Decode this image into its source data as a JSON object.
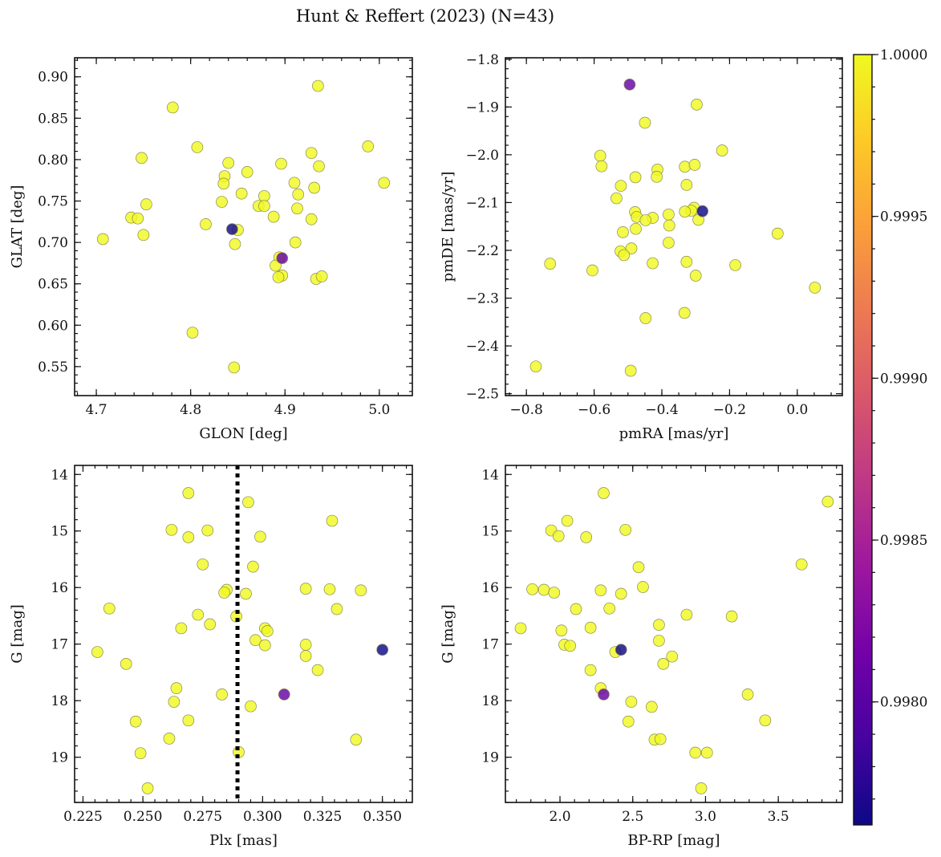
{
  "figure_title": "Hunt & Reffert (2023) (N=43)",
  "chart_data": [
    {
      "id": "sky",
      "type": "scatter",
      "title": "",
      "xlabel": "GLON [deg]",
      "ylabel": "GLAT [deg]",
      "xlim": [
        4.677,
        5.035
      ],
      "ylim": [
        0.515,
        0.923
      ],
      "invert_y": false,
      "xticks": [
        4.7,
        4.8,
        4.9,
        5.0
      ],
      "xticklabels": [
        "4.7",
        "4.8",
        "4.9",
        "5.0"
      ],
      "yticks": [
        0.55,
        0.6,
        0.65,
        0.7,
        0.75,
        0.8,
        0.85,
        0.9
      ],
      "yticklabels": [
        "0.55",
        "0.60",
        "0.65",
        "0.70",
        "0.75",
        "0.80",
        "0.85",
        "0.90"
      ],
      "xminor": 0.02,
      "yminor": 0.01,
      "points": [
        {
          "x": 4.781,
          "y": 0.863
        },
        {
          "x": 4.935,
          "y": 0.889
        },
        {
          "x": 4.988,
          "y": 0.816
        },
        {
          "x": 4.748,
          "y": 0.802
        },
        {
          "x": 4.807,
          "y": 0.815
        },
        {
          "x": 4.928,
          "y": 0.808
        },
        {
          "x": 4.84,
          "y": 0.796
        },
        {
          "x": 4.896,
          "y": 0.795
        },
        {
          "x": 4.936,
          "y": 0.792
        },
        {
          "x": 4.836,
          "y": 0.78
        },
        {
          "x": 4.86,
          "y": 0.785
        },
        {
          "x": 4.91,
          "y": 0.772
        },
        {
          "x": 5.005,
          "y": 0.772
        },
        {
          "x": 4.835,
          "y": 0.771
        },
        {
          "x": 4.854,
          "y": 0.759
        },
        {
          "x": 4.878,
          "y": 0.756
        },
        {
          "x": 4.914,
          "y": 0.758
        },
        {
          "x": 4.931,
          "y": 0.766
        },
        {
          "x": 4.833,
          "y": 0.749
        },
        {
          "x": 4.753,
          "y": 0.746
        },
        {
          "x": 4.872,
          "y": 0.744
        },
        {
          "x": 4.878,
          "y": 0.744
        },
        {
          "x": 4.913,
          "y": 0.741
        },
        {
          "x": 4.737,
          "y": 0.73
        },
        {
          "x": 4.744,
          "y": 0.729
        },
        {
          "x": 4.888,
          "y": 0.731
        },
        {
          "x": 4.928,
          "y": 0.728
        },
        {
          "x": 4.816,
          "y": 0.722
        },
        {
          "x": 4.75,
          "y": 0.709
        },
        {
          "x": 4.707,
          "y": 0.704
        },
        {
          "x": 4.85,
          "y": 0.715
        },
        {
          "x": 4.847,
          "y": 0.698
        },
        {
          "x": 4.911,
          "y": 0.7
        },
        {
          "x": 4.894,
          "y": 0.682
        },
        {
          "x": 4.89,
          "y": 0.672
        },
        {
          "x": 4.897,
          "y": 0.66
        },
        {
          "x": 4.893,
          "y": 0.658
        },
        {
          "x": 4.933,
          "y": 0.656
        },
        {
          "x": 4.939,
          "y": 0.659
        },
        {
          "x": 4.802,
          "y": 0.591
        },
        {
          "x": 4.846,
          "y": 0.549
        },
        {
          "x": 4.844,
          "y": 0.716,
          "c": 0.99762
        },
        {
          "x": 4.897,
          "y": 0.681,
          "c": 0.99808
        }
      ]
    },
    {
      "id": "pm",
      "type": "scatter",
      "title": "",
      "xlabel": "pmRA [mas/yr]",
      "ylabel": "pmDE [mas/yr]",
      "xlim": [
        -0.862,
        0.133
      ],
      "ylim": [
        -2.504,
        -1.797
      ],
      "invert_y": false,
      "xticks": [
        -0.8,
        -0.6,
        -0.4,
        -0.2,
        0.0
      ],
      "xticklabels": [
        "−0.8",
        "−0.6",
        "−0.4",
        "−0.2",
        "0.0"
      ],
      "yticks": [
        -2.5,
        -2.4,
        -2.3,
        -2.2,
        -2.1,
        -2.0,
        -1.9,
        -1.8
      ],
      "yticklabels": [
        "−2.5",
        "−2.4",
        "−2.3",
        "−2.2",
        "−2.1",
        "−2.0",
        "−1.9",
        "−1.8"
      ],
      "xminor": 0.05,
      "yminor": 0.02,
      "points": [
        {
          "x": -0.297,
          "y": -1.895
        },
        {
          "x": -0.45,
          "y": -1.933
        },
        {
          "x": -0.222,
          "y": -1.991
        },
        {
          "x": -0.582,
          "y": -2.002
        },
        {
          "x": -0.578,
          "y": -2.024
        },
        {
          "x": -0.332,
          "y": -2.025
        },
        {
          "x": -0.303,
          "y": -2.021
        },
        {
          "x": -0.413,
          "y": -2.031
        },
        {
          "x": -0.478,
          "y": -2.047
        },
        {
          "x": -0.415,
          "y": -2.046
        },
        {
          "x": -0.521,
          "y": -2.065
        },
        {
          "x": -0.327,
          "y": -2.063
        },
        {
          "x": -0.534,
          "y": -2.091
        },
        {
          "x": -0.479,
          "y": -2.12
        },
        {
          "x": -0.474,
          "y": -2.13
        },
        {
          "x": -0.305,
          "y": -2.111
        },
        {
          "x": -0.313,
          "y": -2.117
        },
        {
          "x": -0.332,
          "y": -2.119
        },
        {
          "x": -0.427,
          "y": -2.132
        },
        {
          "x": -0.448,
          "y": -2.137
        },
        {
          "x": -0.38,
          "y": -2.125
        },
        {
          "x": -0.292,
          "y": -2.136
        },
        {
          "x": -0.378,
          "y": -2.148
        },
        {
          "x": -0.477,
          "y": -2.155
        },
        {
          "x": -0.515,
          "y": -2.162
        },
        {
          "x": -0.058,
          "y": -2.165
        },
        {
          "x": -0.38,
          "y": -2.184
        },
        {
          "x": -0.49,
          "y": -2.196
        },
        {
          "x": -0.522,
          "y": -2.202
        },
        {
          "x": -0.512,
          "y": -2.21
        },
        {
          "x": -0.327,
          "y": -2.224
        },
        {
          "x": -0.427,
          "y": -2.227
        },
        {
          "x": -0.73,
          "y": -2.228
        },
        {
          "x": -0.183,
          "y": -2.231
        },
        {
          "x": -0.605,
          "y": -2.242
        },
        {
          "x": -0.3,
          "y": -2.253
        },
        {
          "x": 0.052,
          "y": -2.278
        },
        {
          "x": -0.333,
          "y": -2.331
        },
        {
          "x": -0.448,
          "y": -2.342
        },
        {
          "x": -0.772,
          "y": -2.443
        },
        {
          "x": -0.492,
          "y": -2.452
        },
        {
          "x": -0.28,
          "y": -2.118,
          "c": 0.99762
        },
        {
          "x": -0.495,
          "y": -1.853,
          "c": 0.99808
        }
      ]
    },
    {
      "id": "plx",
      "type": "scatter",
      "title": "",
      "xlabel": "Plx [mas]",
      "ylabel": "G [mag]",
      "xlim": [
        0.2215,
        0.3625
      ],
      "ylim": [
        13.84,
        19.8
      ],
      "invert_y": true,
      "xticks": [
        0.225,
        0.25,
        0.275,
        0.3,
        0.325,
        0.35
      ],
      "xticklabels": [
        "0.225",
        "0.250",
        "0.275",
        "0.300",
        "0.325",
        "0.350"
      ],
      "yticks": [
        14,
        15,
        16,
        17,
        18,
        19
      ],
      "yticklabels": [
        "14",
        "15",
        "16",
        "17",
        "18",
        "19"
      ],
      "xminor": 0.005,
      "yminor": 0.2,
      "vline": {
        "x": 0.2895,
        "style": "dotted"
      },
      "points": [
        {
          "x": 0.269,
          "y": 14.33
        },
        {
          "x": 0.294,
          "y": 14.49
        },
        {
          "x": 0.329,
          "y": 14.82
        },
        {
          "x": 0.262,
          "y": 14.98
        },
        {
          "x": 0.277,
          "y": 14.99
        },
        {
          "x": 0.269,
          "y": 15.11
        },
        {
          "x": 0.299,
          "y": 15.1
        },
        {
          "x": 0.275,
          "y": 15.59
        },
        {
          "x": 0.296,
          "y": 15.63
        },
        {
          "x": 0.285,
          "y": 16.04
        },
        {
          "x": 0.284,
          "y": 16.09
        },
        {
          "x": 0.293,
          "y": 16.11
        },
        {
          "x": 0.318,
          "y": 16.02
        },
        {
          "x": 0.328,
          "y": 16.03
        },
        {
          "x": 0.341,
          "y": 16.05
        },
        {
          "x": 0.236,
          "y": 16.37
        },
        {
          "x": 0.331,
          "y": 16.38
        },
        {
          "x": 0.273,
          "y": 16.48
        },
        {
          "x": 0.289,
          "y": 16.51
        },
        {
          "x": 0.278,
          "y": 16.65
        },
        {
          "x": 0.266,
          "y": 16.72
        },
        {
          "x": 0.301,
          "y": 16.72
        },
        {
          "x": 0.302,
          "y": 16.77
        },
        {
          "x": 0.297,
          "y": 16.93
        },
        {
          "x": 0.301,
          "y": 17.02
        },
        {
          "x": 0.318,
          "y": 17.01
        },
        {
          "x": 0.231,
          "y": 17.14
        },
        {
          "x": 0.318,
          "y": 17.21
        },
        {
          "x": 0.243,
          "y": 17.35
        },
        {
          "x": 0.323,
          "y": 17.46
        },
        {
          "x": 0.264,
          "y": 17.78
        },
        {
          "x": 0.283,
          "y": 17.89
        },
        {
          "x": 0.263,
          "y": 18.02
        },
        {
          "x": 0.295,
          "y": 18.1
        },
        {
          "x": 0.247,
          "y": 18.37
        },
        {
          "x": 0.269,
          "y": 18.35
        },
        {
          "x": 0.261,
          "y": 18.67
        },
        {
          "x": 0.339,
          "y": 18.69
        },
        {
          "x": 0.249,
          "y": 18.93
        },
        {
          "x": 0.29,
          "y": 18.91
        },
        {
          "x": 0.252,
          "y": 19.55
        },
        {
          "x": 0.35,
          "y": 17.1,
          "c": 0.99762
        },
        {
          "x": 0.309,
          "y": 17.89,
          "c": 0.99808
        }
      ]
    },
    {
      "id": "cmd",
      "type": "scatter",
      "title": "",
      "xlabel": "BP-RP [mag]",
      "ylabel": "G [mag]",
      "xlim": [
        1.625,
        3.94
      ],
      "ylim": [
        13.84,
        19.8
      ],
      "invert_y": true,
      "xticks": [
        2.0,
        2.5,
        3.0,
        3.5
      ],
      "xticklabels": [
        "2.0",
        "2.5",
        "3.0",
        "3.5"
      ],
      "yticks": [
        14,
        15,
        16,
        17,
        18,
        19
      ],
      "yticklabels": [
        "14",
        "15",
        "16",
        "17",
        "18",
        "19"
      ],
      "xminor": 0.1,
      "yminor": 0.2,
      "points": [
        {
          "x": 2.3,
          "y": 14.33
        },
        {
          "x": 3.84,
          "y": 14.48
        },
        {
          "x": 2.05,
          "y": 14.82
        },
        {
          "x": 1.94,
          "y": 14.99
        },
        {
          "x": 2.45,
          "y": 14.98
        },
        {
          "x": 1.99,
          "y": 15.09
        },
        {
          "x": 2.18,
          "y": 15.11
        },
        {
          "x": 3.66,
          "y": 15.59
        },
        {
          "x": 2.54,
          "y": 15.64
        },
        {
          "x": 1.81,
          "y": 16.03
        },
        {
          "x": 1.89,
          "y": 16.04
        },
        {
          "x": 2.28,
          "y": 16.05
        },
        {
          "x": 2.57,
          "y": 15.99
        },
        {
          "x": 1.96,
          "y": 16.09
        },
        {
          "x": 2.42,
          "y": 16.11
        },
        {
          "x": 2.11,
          "y": 16.38
        },
        {
          "x": 2.34,
          "y": 16.37
        },
        {
          "x": 2.87,
          "y": 16.48
        },
        {
          "x": 3.18,
          "y": 16.51
        },
        {
          "x": 2.68,
          "y": 16.66
        },
        {
          "x": 1.73,
          "y": 16.72
        },
        {
          "x": 2.01,
          "y": 16.76
        },
        {
          "x": 2.21,
          "y": 16.71
        },
        {
          "x": 2.68,
          "y": 16.94
        },
        {
          "x": 2.03,
          "y": 17.01
        },
        {
          "x": 2.07,
          "y": 17.03
        },
        {
          "x": 2.38,
          "y": 17.14
        },
        {
          "x": 2.77,
          "y": 17.22
        },
        {
          "x": 2.71,
          "y": 17.35
        },
        {
          "x": 2.21,
          "y": 17.46
        },
        {
          "x": 2.28,
          "y": 17.78
        },
        {
          "x": 3.29,
          "y": 17.89
        },
        {
          "x": 2.49,
          "y": 18.02
        },
        {
          "x": 2.63,
          "y": 18.11
        },
        {
          "x": 2.47,
          "y": 18.37
        },
        {
          "x": 3.41,
          "y": 18.35
        },
        {
          "x": 2.65,
          "y": 18.69
        },
        {
          "x": 2.69,
          "y": 18.68
        },
        {
          "x": 2.93,
          "y": 18.92
        },
        {
          "x": 3.01,
          "y": 18.92
        },
        {
          "x": 2.97,
          "y": 19.55
        },
        {
          "x": 2.42,
          "y": 17.1,
          "c": 0.99762
        },
        {
          "x": 2.3,
          "y": 17.89,
          "c": 0.99808
        }
      ]
    }
  ],
  "colorbar": {
    "cmap": "plasma",
    "vmin": 0.99762,
    "vmax": 1.0,
    "ticks": [
      0.998,
      0.9985,
      0.999,
      0.9995,
      1.0
    ],
    "ticklabels": [
      "0.9980",
      "0.9985",
      "0.9990",
      "0.9995",
      "1.0000"
    ]
  },
  "marker": {
    "default_value": 1.0,
    "edge_color": "#8a8a50",
    "opacity": 0.82
  },
  "colors": {
    "plasma_stops": [
      "#0d0887",
      "#46039f",
      "#7201a8",
      "#9c179e",
      "#bd3786",
      "#d8576b",
      "#ed7953",
      "#fb9f3a",
      "#fdca26",
      "#f0f921"
    ]
  }
}
